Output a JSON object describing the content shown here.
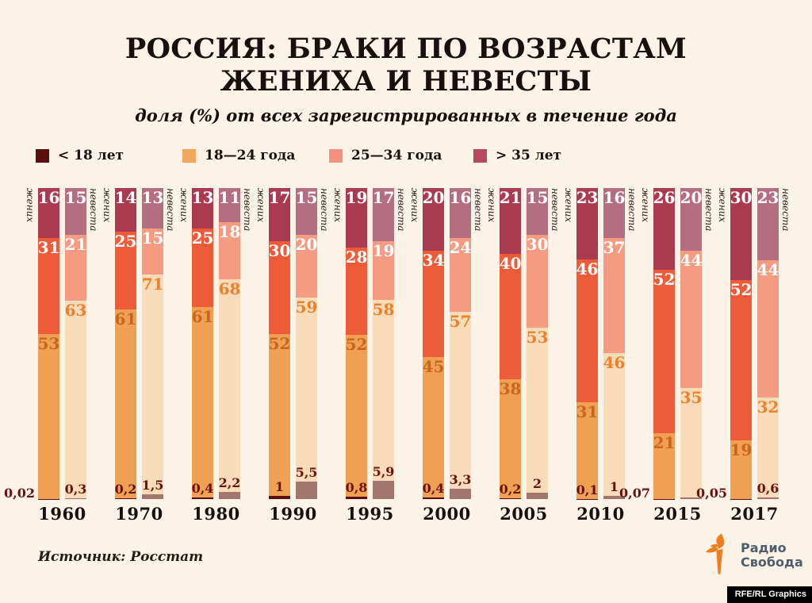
{
  "title": {
    "line1": "РОССИЯ: БРАКИ ПО ВОЗРАСТАМ",
    "line2": "ЖЕНИХА И НЕВЕСТЫ"
  },
  "subtitle": "доля (%) от всех зарегистрированных в течение года",
  "legend": [
    {
      "label": "< 18 лет",
      "color": "#5c0e0c"
    },
    {
      "label": "18—24 года",
      "color": "#f2a55c"
    },
    {
      "label": "25—34 года",
      "color": "#f2917d"
    },
    {
      "label": "> 35 лет",
      "color": "#b8495c"
    }
  ],
  "bar_roles": {
    "groom": "жених",
    "bride": "невеста"
  },
  "colors": {
    "background": "#fbf3e8",
    "groom": {
      "u18": "#5c0e0c",
      "a18": "#efa053",
      "a25": "#ee5b38",
      "o35": "#a93a50"
    },
    "bride": {
      "u18": "#a3766d",
      "a18": "#f8dcba",
      "a25": "#f59b82",
      "o35": "#b46e82"
    },
    "accent_orange": "#ef7d1f",
    "logo_text": "#4e5f6b"
  },
  "source": "Источник: Росстат",
  "logo": {
    "line1": "Радио",
    "line2": "Свобода"
  },
  "credit": "RFE/RL Graphics",
  "chart_data": {
    "type": "bar",
    "stacked": true,
    "unit": "percent",
    "ylim": [
      0,
      100
    ],
    "grid": false,
    "legend_position": "top",
    "segments_order": [
      "<18",
      "18—24",
      "25—34",
      ">35"
    ],
    "categories": [
      "1960",
      "1970",
      "1980",
      "1990",
      "1995",
      "2000",
      "2005",
      "2010",
      "2015",
      "2017"
    ],
    "groups": [
      {
        "year": "1960",
        "groom": {
          "under_pos": "outside",
          "segments": [
            {
              "key": "u18",
              "age": "<18",
              "value": 0.02,
              "label": "0,02"
            },
            {
              "key": "a18",
              "age": "18—24",
              "value": 53,
              "label": "53"
            },
            {
              "key": "a25",
              "age": "25—34",
              "value": 31,
              "label": "31"
            },
            {
              "key": "o35",
              "age": ">35",
              "value": 16,
              "label": "16"
            }
          ]
        },
        "bride": {
          "under_pos": "inside",
          "segments": [
            {
              "key": "u18",
              "age": "<18",
              "value": 0.3,
              "label": "0,3"
            },
            {
              "key": "a18",
              "age": "18—24",
              "value": 63,
              "label": "63"
            },
            {
              "key": "a25",
              "age": "25—34",
              "value": 21,
              "label": "21"
            },
            {
              "key": "o35",
              "age": ">35",
              "value": 15,
              "label": "15"
            }
          ]
        }
      },
      {
        "year": "1970",
        "groom": {
          "under_pos": "inside",
          "segments": [
            {
              "key": "u18",
              "age": "<18",
              "value": 0.2,
              "label": "0,2"
            },
            {
              "key": "a18",
              "age": "18—24",
              "value": 61,
              "label": "61"
            },
            {
              "key": "a25",
              "age": "25—34",
              "value": 25,
              "label": "25"
            },
            {
              "key": "o35",
              "age": ">35",
              "value": 14,
              "label": "14"
            }
          ]
        },
        "bride": {
          "under_pos": "inside",
          "segments": [
            {
              "key": "u18",
              "age": "<18",
              "value": 1.5,
              "label": "1,5"
            },
            {
              "key": "a18",
              "age": "18—24",
              "value": 71,
              "label": "71"
            },
            {
              "key": "a25",
              "age": "25—34",
              "value": 15,
              "label": "15"
            },
            {
              "key": "o35",
              "age": ">35",
              "value": 13,
              "label": "13"
            }
          ]
        }
      },
      {
        "year": "1980",
        "groom": {
          "under_pos": "inside",
          "segments": [
            {
              "key": "u18",
              "age": "<18",
              "value": 0.4,
              "label": "0,4"
            },
            {
              "key": "a18",
              "age": "18—24",
              "value": 61,
              "label": "61"
            },
            {
              "key": "a25",
              "age": "25—34",
              "value": 25,
              "label": "25"
            },
            {
              "key": "o35",
              "age": ">35",
              "value": 13,
              "label": "13"
            }
          ]
        },
        "bride": {
          "under_pos": "inside",
          "segments": [
            {
              "key": "u18",
              "age": "<18",
              "value": 2.2,
              "label": "2,2"
            },
            {
              "key": "a18",
              "age": "18—24",
              "value": 68,
              "label": "68"
            },
            {
              "key": "a25",
              "age": "25—34",
              "value": 18,
              "label": "18"
            },
            {
              "key": "o35",
              "age": ">35",
              "value": 11,
              "label": "11"
            }
          ]
        }
      },
      {
        "year": "1990",
        "groom": {
          "under_pos": "inside",
          "segments": [
            {
              "key": "u18",
              "age": "<18",
              "value": 1,
              "label": "1"
            },
            {
              "key": "a18",
              "age": "18—24",
              "value": 52,
              "label": "52"
            },
            {
              "key": "a25",
              "age": "25—34",
              "value": 30,
              "label": "30"
            },
            {
              "key": "o35",
              "age": ">35",
              "value": 17,
              "label": "17"
            }
          ]
        },
        "bride": {
          "under_pos": "inside",
          "segments": [
            {
              "key": "u18",
              "age": "<18",
              "value": 5.5,
              "label": "5,5"
            },
            {
              "key": "a18",
              "age": "18—24",
              "value": 59,
              "label": "59"
            },
            {
              "key": "a25",
              "age": "25—34",
              "value": 20,
              "label": "20"
            },
            {
              "key": "o35",
              "age": ">35",
              "value": 15,
              "label": "15"
            }
          ]
        }
      },
      {
        "year": "1995",
        "groom": {
          "under_pos": "inside",
          "segments": [
            {
              "key": "u18",
              "age": "<18",
              "value": 0.8,
              "label": "0,8"
            },
            {
              "key": "a18",
              "age": "18—24",
              "value": 52,
              "label": "52"
            },
            {
              "key": "a25",
              "age": "25—34",
              "value": 28,
              "label": "28"
            },
            {
              "key": "o35",
              "age": ">35",
              "value": 19,
              "label": "19"
            }
          ]
        },
        "bride": {
          "under_pos": "inside",
          "segments": [
            {
              "key": "u18",
              "age": "<18",
              "value": 5.9,
              "label": "5,9"
            },
            {
              "key": "a18",
              "age": "18—24",
              "value": 58,
              "label": "58"
            },
            {
              "key": "a25",
              "age": "25—34",
              "value": 19,
              "label": "19"
            },
            {
              "key": "o35",
              "age": ">35",
              "value": 17,
              "label": "17"
            }
          ]
        }
      },
      {
        "year": "2000",
        "groom": {
          "under_pos": "inside",
          "segments": [
            {
              "key": "u18",
              "age": "<18",
              "value": 0.4,
              "label": "0,4"
            },
            {
              "key": "a18",
              "age": "18—24",
              "value": 45,
              "label": "45"
            },
            {
              "key": "a25",
              "age": "25—34",
              "value": 34,
              "label": "34"
            },
            {
              "key": "o35",
              "age": ">35",
              "value": 20,
              "label": "20"
            }
          ]
        },
        "bride": {
          "under_pos": "inside",
          "segments": [
            {
              "key": "u18",
              "age": "<18",
              "value": 3.3,
              "label": "3,3"
            },
            {
              "key": "a18",
              "age": "18—24",
              "value": 57,
              "label": "57"
            },
            {
              "key": "a25",
              "age": "25—34",
              "value": 24,
              "label": "24"
            },
            {
              "key": "o35",
              "age": ">35",
              "value": 16,
              "label": "16"
            }
          ]
        }
      },
      {
        "year": "2005",
        "groom": {
          "under_pos": "inside",
          "segments": [
            {
              "key": "u18",
              "age": "<18",
              "value": 0.2,
              "label": "0,2"
            },
            {
              "key": "a18",
              "age": "18—24",
              "value": 38,
              "label": "38"
            },
            {
              "key": "a25",
              "age": "25—34",
              "value": 40,
              "label": "40"
            },
            {
              "key": "o35",
              "age": ">35",
              "value": 21,
              "label": "21"
            }
          ]
        },
        "bride": {
          "under_pos": "inside",
          "segments": [
            {
              "key": "u18",
              "age": "<18",
              "value": 2,
              "label": "2"
            },
            {
              "key": "a18",
              "age": "18—24",
              "value": 53,
              "label": "53"
            },
            {
              "key": "a25",
              "age": "25—34",
              "value": 30,
              "label": "30"
            },
            {
              "key": "o35",
              "age": ">35",
              "value": 15,
              "label": "15"
            }
          ]
        }
      },
      {
        "year": "2010",
        "groom": {
          "under_pos": "inside",
          "segments": [
            {
              "key": "u18",
              "age": "<18",
              "value": 0.1,
              "label": "0,1"
            },
            {
              "key": "a18",
              "age": "18—24",
              "value": 31,
              "label": "31"
            },
            {
              "key": "a25",
              "age": "25—34",
              "value": 46,
              "label": "46"
            },
            {
              "key": "o35",
              "age": ">35",
              "value": 23,
              "label": "23"
            }
          ]
        },
        "bride": {
          "under_pos": "inside",
          "segments": [
            {
              "key": "u18",
              "age": "<18",
              "value": 1,
              "label": "1"
            },
            {
              "key": "a18",
              "age": "18—24",
              "value": 46,
              "label": "46"
            },
            {
              "key": "a25",
              "age": "25—34",
              "value": 37,
              "label": "37"
            },
            {
              "key": "o35",
              "age": ">35",
              "value": 16,
              "label": "16"
            }
          ]
        }
      },
      {
        "year": "2015",
        "groom": {
          "under_pos": "outside",
          "segments": [
            {
              "key": "u18",
              "age": "<18",
              "value": 0.07,
              "label": "0,07"
            },
            {
              "key": "a18",
              "age": "18—24",
              "value": 21,
              "label": "21"
            },
            {
              "key": "a25",
              "age": "25—34",
              "value": 52,
              "label": "52"
            },
            {
              "key": "o35",
              "age": ">35",
              "value": 26,
              "label": "26"
            }
          ]
        },
        "bride": {
          "under_pos": "none",
          "segments": [
            {
              "key": "u18",
              "age": "<18",
              "value": 0.5,
              "label": ""
            },
            {
              "key": "a18",
              "age": "18—24",
              "value": 35,
              "label": "35"
            },
            {
              "key": "a25",
              "age": "25—34",
              "value": 44,
              "label": "44"
            },
            {
              "key": "o35",
              "age": ">35",
              "value": 20,
              "label": "20"
            }
          ]
        }
      },
      {
        "year": "2017",
        "groom": {
          "under_pos": "outside",
          "segments": [
            {
              "key": "u18",
              "age": "<18",
              "value": 0.05,
              "label": "0,05"
            },
            {
              "key": "a18",
              "age": "18—24",
              "value": 19,
              "label": "19"
            },
            {
              "key": "a25",
              "age": "25—34",
              "value": 52,
              "label": "52"
            },
            {
              "key": "o35",
              "age": ">35",
              "value": 30,
              "label": "30"
            }
          ]
        },
        "bride": {
          "under_pos": "inside",
          "segments": [
            {
              "key": "u18",
              "age": "<18",
              "value": 0.6,
              "label": "0,6"
            },
            {
              "key": "a18",
              "age": "18—24",
              "value": 32,
              "label": "32"
            },
            {
              "key": "a25",
              "age": "25—34",
              "value": 44,
              "label": "44"
            },
            {
              "key": "o35",
              "age": ">35",
              "value": 23,
              "label": "23"
            }
          ]
        }
      }
    ]
  }
}
